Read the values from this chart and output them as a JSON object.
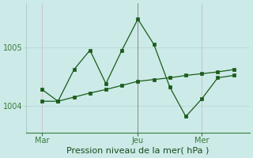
{
  "background_color": "#cceae8",
  "grid_color_major": "#b8d8d5",
  "grid_color_minor": "#d4ecea",
  "line_color": "#1a5c1a",
  "xlabel": "Pression niveau de la mer( hPa )",
  "xlabel_fontsize": 8,
  "ytick_labels": [
    "1004",
    "1005"
  ],
  "ytick_values": [
    1004,
    1005
  ],
  "ylim": [
    1003.55,
    1005.75
  ],
  "xtick_labels": [
    "Mar",
    "Jeu",
    "Mer"
  ],
  "xtick_positions": [
    2,
    14,
    22
  ],
  "xlim": [
    0,
    28
  ],
  "series1_x": [
    2,
    4,
    6,
    8,
    10,
    12,
    14,
    16,
    18,
    20,
    22,
    24,
    26
  ],
  "series1_y": [
    1004.28,
    1004.08,
    1004.62,
    1004.95,
    1004.38,
    1004.95,
    1005.48,
    1005.05,
    1004.32,
    1003.82,
    1004.12,
    1004.48,
    1004.52
  ],
  "series2_x": [
    2,
    4,
    6,
    8,
    10,
    12,
    14,
    16,
    18,
    20,
    22,
    24,
    26
  ],
  "series2_y": [
    1004.08,
    1004.08,
    1004.15,
    1004.22,
    1004.28,
    1004.35,
    1004.42,
    1004.45,
    1004.48,
    1004.52,
    1004.55,
    1004.58,
    1004.62
  ],
  "vline_x": 14,
  "marker_size": 2.5,
  "line_width": 0.9,
  "tick_fontsize": 7,
  "spine_color": "#3a7a3a",
  "tick_color": "#3a7a3a"
}
